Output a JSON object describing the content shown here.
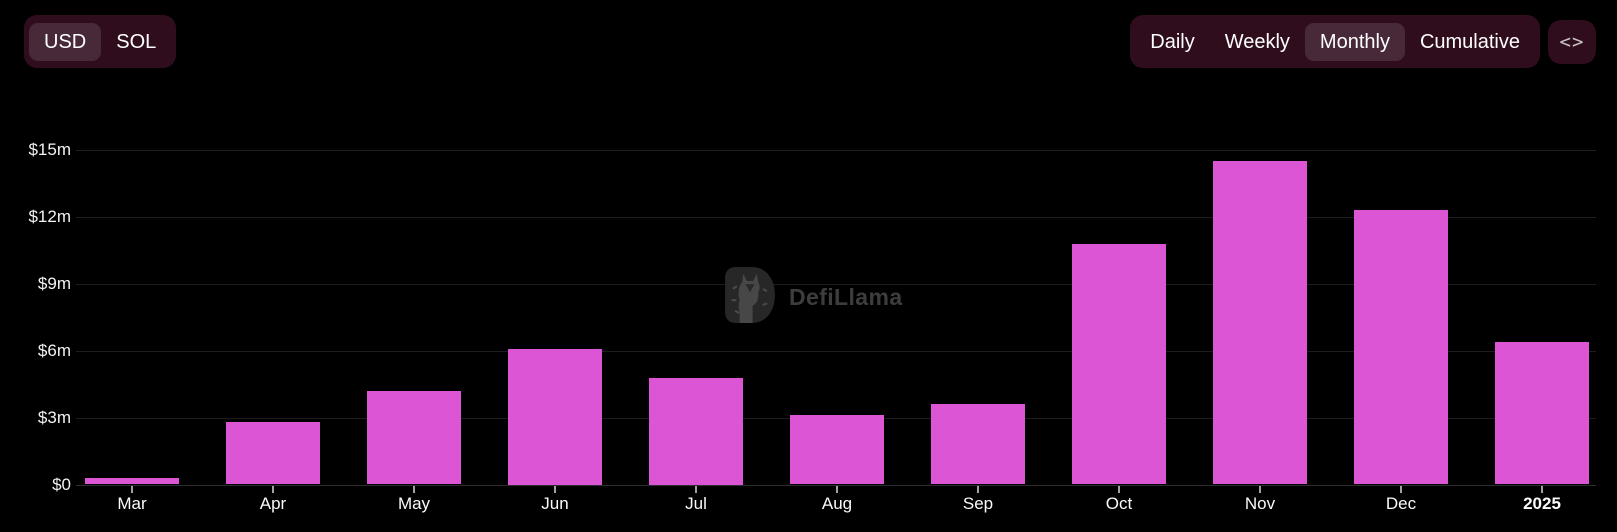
{
  "header": {
    "currency_toggle": {
      "options": [
        "USD",
        "SOL"
      ],
      "selected": "USD"
    },
    "period_toggle": {
      "options": [
        "Daily",
        "Weekly",
        "Monthly",
        "Cumulative"
      ],
      "selected": "Monthly"
    },
    "embed_button": {
      "icon": "<>"
    }
  },
  "watermark": {
    "text": "DefiLlama"
  },
  "chart_data": {
    "type": "bar",
    "title": "",
    "xlabel": "",
    "ylabel": "",
    "unit": "USD millions",
    "categories": [
      "Mar",
      "Apr",
      "May",
      "Jun",
      "Jul",
      "Aug",
      "Sep",
      "Oct",
      "Nov",
      "Dec",
      "2025"
    ],
    "values": [
      0.3,
      2.8,
      4.2,
      6.1,
      4.8,
      3.1,
      3.6,
      10.8,
      14.5,
      12.3,
      6.4
    ],
    "yticks": [
      {
        "label": "$0",
        "value": 0
      },
      {
        "label": "$3m",
        "value": 3
      },
      {
        "label": "$6m",
        "value": 6
      },
      {
        "label": "$9m",
        "value": 9
      },
      {
        "label": "$12m",
        "value": 12
      },
      {
        "label": "$15m",
        "value": 15
      }
    ],
    "ylim": [
      0,
      15
    ],
    "grid": true,
    "legend": false,
    "bold_categories": [
      "2025"
    ],
    "bar_color": "#dc55d4"
  },
  "colors": {
    "background": "#000000",
    "bar": "#dc55d4",
    "control_bg": "#2f0d1d",
    "control_selected_bg": "#472939",
    "text": "#ffffff",
    "watermark_text": "#3d3d3d",
    "gridline": "#1d1d1f",
    "axis_line": "#2e2e32",
    "tick": "#a0a0a0"
  }
}
